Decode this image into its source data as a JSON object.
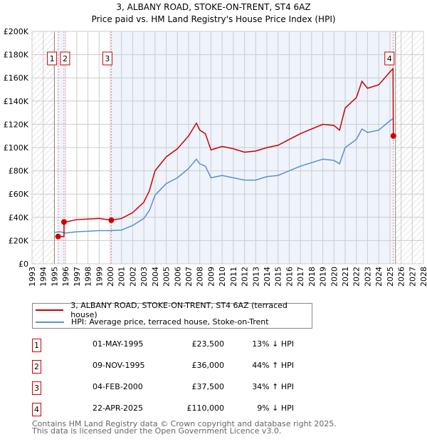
{
  "chart_data": {
    "type": "line",
    "title": "3, ALBANY ROAD, STOKE-ON-TRENT, ST4 6AZ",
    "subtitle": "Price paid vs. HM Land Registry's House Price Index (HPI)",
    "xlim": [
      1993,
      2028
    ],
    "ylim": [
      0,
      200000
    ],
    "y_ticks": [
      "£0",
      "£20K",
      "£40K",
      "£60K",
      "£80K",
      "£100K",
      "£120K",
      "£140K",
      "£160K",
      "£180K",
      "£200K"
    ],
    "x_ticks": [
      "1993",
      "1994",
      "1995",
      "1996",
      "1997",
      "1998",
      "1999",
      "2000",
      "2001",
      "2002",
      "2003",
      "2004",
      "2005",
      "2006",
      "2007",
      "2008",
      "2009",
      "2010",
      "2011",
      "2012",
      "2013",
      "2014",
      "2015",
      "2016",
      "2017",
      "2018",
      "2019",
      "2020",
      "2021",
      "2022",
      "2023",
      "2024",
      "2025",
      "2026",
      "2027",
      "2028"
    ],
    "grid": true,
    "series": [
      {
        "name": "3, ALBANY ROAD, STOKE-ON-TRENT, ST4 6AZ (terraced house)",
        "color": "#cc0000",
        "points": [
          [
            1995.33,
            23500
          ],
          [
            1995.86,
            23500
          ],
          [
            1995.86,
            36000
          ],
          [
            1996,
            36000
          ],
          [
            1997,
            38000
          ],
          [
            1998,
            38500
          ],
          [
            1999,
            39000
          ],
          [
            2000.09,
            37500
          ],
          [
            2001,
            39000
          ],
          [
            2002,
            44000
          ],
          [
            2003,
            53000
          ],
          [
            2003.5,
            63000
          ],
          [
            2004,
            80000
          ],
          [
            2005,
            92000
          ],
          [
            2006,
            99000
          ],
          [
            2007,
            110000
          ],
          [
            2007.7,
            121000
          ],
          [
            2008,
            115000
          ],
          [
            2008.5,
            112000
          ],
          [
            2009,
            98000
          ],
          [
            2010,
            101000
          ],
          [
            2011,
            99000
          ],
          [
            2012,
            96000
          ],
          [
            2013,
            97000
          ],
          [
            2014,
            100000
          ],
          [
            2015,
            102000
          ],
          [
            2016,
            107000
          ],
          [
            2017,
            112000
          ],
          [
            2018,
            116000
          ],
          [
            2019,
            120000
          ],
          [
            2020,
            119000
          ],
          [
            2020.5,
            115000
          ],
          [
            2021,
            134000
          ],
          [
            2022,
            143000
          ],
          [
            2022.5,
            157000
          ],
          [
            2023,
            151000
          ],
          [
            2024,
            154000
          ],
          [
            2025,
            165000
          ],
          [
            2025.28,
            168000
          ],
          [
            2025.31,
            110000
          ]
        ]
      },
      {
        "name": "HPI: Average price, terraced house, Stoke-on-Trent",
        "color": "#5b8fd0",
        "points": [
          [
            1995,
            27000
          ],
          [
            1995.5,
            27500
          ],
          [
            1996,
            26500
          ],
          [
            1997,
            27500
          ],
          [
            1998,
            28000
          ],
          [
            1999,
            28500
          ],
          [
            2000,
            28500
          ],
          [
            2001,
            29000
          ],
          [
            2002,
            33000
          ],
          [
            2003,
            39000
          ],
          [
            2003.5,
            46000
          ],
          [
            2004,
            59000
          ],
          [
            2005,
            69000
          ],
          [
            2006,
            74000
          ],
          [
            2007,
            82000
          ],
          [
            2007.7,
            90000
          ],
          [
            2008,
            86000
          ],
          [
            2008.5,
            84000
          ],
          [
            2009,
            74000
          ],
          [
            2010,
            76000
          ],
          [
            2011,
            74000
          ],
          [
            2012,
            72000
          ],
          [
            2013,
            72000
          ],
          [
            2014,
            75000
          ],
          [
            2015,
            76000
          ],
          [
            2016,
            80000
          ],
          [
            2017,
            84000
          ],
          [
            2018,
            87000
          ],
          [
            2019,
            90000
          ],
          [
            2020,
            89000
          ],
          [
            2020.5,
            86000
          ],
          [
            2021,
            100000
          ],
          [
            2022,
            107000
          ],
          [
            2022.5,
            116000
          ],
          [
            2023,
            113000
          ],
          [
            2024,
            115000
          ],
          [
            2025,
            123000
          ],
          [
            2025.3,
            125000
          ]
        ]
      }
    ],
    "sales": [
      {
        "label": "1",
        "x": 1995.33,
        "y": 23500,
        "date": "01-MAY-1995",
        "price": "£23,500",
        "hpi": "13% ↓ HPI"
      },
      {
        "label": "2",
        "x": 1995.86,
        "y": 36000,
        "date": "09-NOV-1995",
        "price": "£36,000",
        "hpi": "44% ↑ HPI"
      },
      {
        "label": "3",
        "x": 2000.09,
        "y": 37500,
        "date": "04-FEB-2000",
        "price": "£37,500",
        "hpi": "34% ↑ HPI"
      },
      {
        "label": "4",
        "x": 2025.31,
        "y": 110000,
        "date": "22-APR-2025",
        "price": "£110,000",
        "hpi": "9% ↓ HPI"
      }
    ]
  },
  "footer": {
    "line1": "Contains HM Land Registry data © Crown copyright and database right 2025.",
    "line2": "This data is licensed under the Open Government Licence v3.0."
  }
}
